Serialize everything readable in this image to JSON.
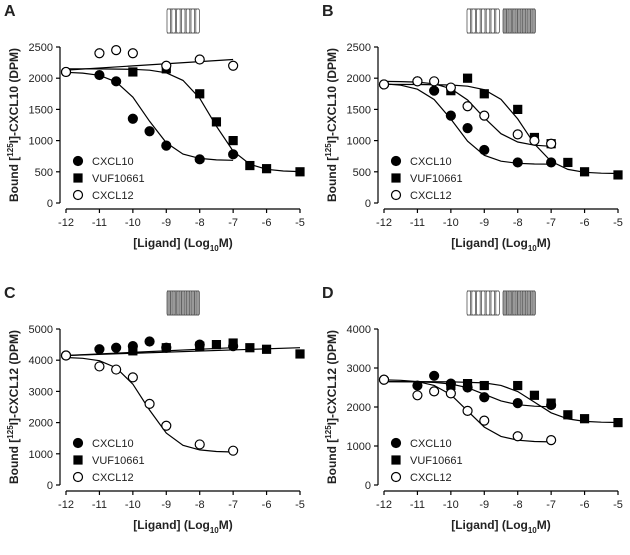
{
  "chart_data": [
    {
      "type": "scatter",
      "label": "A",
      "icon_colors": [
        "#ffffff"
      ],
      "legend": "lower left",
      "ylabel": {
        "pre": "Bound [",
        "sup": "125",
        "post": "I]-CXCL10 (DPM)"
      },
      "xlabel": {
        "pre": "[Ligand] (Log",
        "sub": "10",
        "post": "M)"
      },
      "xlim": [
        -12,
        -5
      ],
      "xticks": [
        -12,
        -11,
        -10,
        -9,
        -8,
        -7,
        -6,
        -5
      ],
      "ylim": [
        0,
        2500
      ],
      "yticks": [
        0,
        500,
        1000,
        1500,
        2000,
        2500
      ],
      "series": [
        {
          "name": "CXCL10",
          "marker": "circle",
          "color": "#000000",
          "fill": "#000000",
          "x": [
            -12,
            -11,
            -10.5,
            -10,
            -9.5,
            -9,
            -8,
            -7
          ],
          "values": [
            2100,
            2050,
            1950,
            1350,
            1150,
            920,
            700,
            780
          ],
          "fit": {
            "x": [
              -12,
              -11.5,
              -11,
              -10.5,
              -10,
              -9.5,
              -9,
              -8.5,
              -8,
              -7.5,
              -7
            ],
            "values": [
              2094,
              2082,
              2046,
              1941,
              1696,
              1309,
              965,
              784,
              715,
              691,
              684
            ]
          }
        },
        {
          "name": "VUF10661",
          "marker": "square",
          "color": "#000000",
          "fill": "#000000",
          "x": [
            -10,
            -9,
            -8,
            -7.5,
            -7,
            -6.5,
            -6,
            -5
          ],
          "values": [
            2100,
            2150,
            1750,
            1300,
            1000,
            600,
            550,
            500
          ],
          "fit": {
            "x": [
              -12,
              -11,
              -10,
              -9.5,
              -9,
              -8.5,
              -8,
              -7.5,
              -7,
              -6.5,
              -6,
              -5.5,
              -5
            ],
            "values": [
              2150,
              2149,
              2143,
              2129,
              2087,
              1965,
              1680,
              1230,
              831,
              621,
              540,
              513,
              504
            ]
          }
        },
        {
          "name": "CXCL12",
          "marker": "circle",
          "color": "#000000",
          "fill": "#ffffff",
          "x": [
            -12,
            -11,
            -10.5,
            -10,
            -9,
            -8,
            -7
          ],
          "values": [
            2100,
            2400,
            2450,
            2400,
            2200,
            2300,
            2200
          ],
          "fit": {
            "x": [
              -12,
              -7
            ],
            "values": [
              2130,
              2300
            ]
          }
        }
      ]
    },
    {
      "type": "scatter",
      "label": "B",
      "icon_colors": [
        "#ffffff",
        "#999999"
      ],
      "legend": "lower left",
      "ylabel": {
        "pre": "Bound [",
        "sup": "125",
        "post": "I]-CXCL10 (DPM)"
      },
      "xlabel": {
        "pre": "[Ligand] (Log",
        "sub": "10",
        "post": "M)"
      },
      "xlim": [
        -12,
        -5
      ],
      "xticks": [
        -12,
        -11,
        -10,
        -9,
        -8,
        -7,
        -6,
        -5
      ],
      "ylim": [
        0,
        2500
      ],
      "yticks": [
        0,
        500,
        1000,
        1500,
        2000,
        2500
      ],
      "series": [
        {
          "name": "CXCL10",
          "marker": "circle",
          "color": "#000000",
          "fill": "#000000",
          "x": [
            -12,
            -11,
            -10.5,
            -10,
            -9.5,
            -9,
            -8,
            -7
          ],
          "values": [
            1900,
            1950,
            1800,
            1400,
            1200,
            850,
            650,
            650
          ],
          "fit": {
            "x": [
              -12,
              -11.5,
              -11,
              -10.5,
              -10,
              -9.5,
              -9,
              -8.5,
              -8,
              -7.5,
              -7
            ],
            "values": [
              1910,
              1888,
              1824,
              1659,
              1345,
              990,
              765,
              670,
              636,
              625,
              622
            ]
          }
        },
        {
          "name": "VUF10661",
          "marker": "square",
          "color": "#000000",
          "fill": "#000000",
          "x": [
            -10,
            -9.5,
            -9,
            -8,
            -7.5,
            -7,
            -6.5,
            -6,
            -5
          ],
          "values": [
            1800,
            2000,
            1750,
            1500,
            1050,
            950,
            650,
            500,
            450
          ],
          "fit": {
            "x": [
              -12,
              -11,
              -10,
              -9.5,
              -9,
              -8.5,
              -8,
              -7.5,
              -7,
              -6.5,
              -6,
              -5.5,
              -5
            ],
            "values": [
              1900,
              1899,
              1891,
              1872,
              1815,
              1662,
              1347,
              947,
              666,
              538,
              492,
              477,
              472
            ]
          }
        },
        {
          "name": "CXCL12",
          "marker": "circle",
          "color": "#000000",
          "fill": "#ffffff",
          "x": [
            -12,
            -11,
            -10.5,
            -10,
            -9.5,
            -9,
            -8,
            -7.5,
            -7
          ],
          "values": [
            1900,
            1950,
            1950,
            1850,
            1550,
            1400,
            1100,
            1000,
            950
          ],
          "fit": {
            "x": [
              -12,
              -11.5,
              -11,
              -10.5,
              -10,
              -9.5,
              -9,
              -8.5,
              -8,
              -7.5,
              -7
            ],
            "values": [
              1949,
              1946,
              1937,
              1910,
              1832,
              1651,
              1365,
              1111,
              977,
              926,
              908
            ]
          }
        }
      ]
    },
    {
      "type": "scatter",
      "label": "C",
      "icon_colors": [
        "#999999"
      ],
      "legend": "lower left",
      "ylabel": {
        "pre": "Bound [",
        "sup": "125",
        "post": "I]-CXCL12 (DPM)"
      },
      "xlabel": {
        "pre": "[Ligand] (Log",
        "sub": "10",
        "post": "M)"
      },
      "xlim": [
        -12,
        -5
      ],
      "xticks": [
        -12,
        -11,
        -10,
        -9,
        -8,
        -7,
        -6,
        -5
      ],
      "ylim": [
        0,
        5000
      ],
      "yticks": [
        0,
        1000,
        2000,
        3000,
        4000,
        5000
      ],
      "series": [
        {
          "name": "CXCL10",
          "marker": "circle",
          "color": "#000000",
          "fill": "#000000",
          "x": [
            -12,
            -11,
            -10.5,
            -10,
            -9.5,
            -9,
            -8,
            -7
          ],
          "values": [
            4150,
            4350,
            4400,
            4450,
            4600,
            4400,
            4500,
            4450
          ],
          "fit": {
            "x": [
              -12,
              -7
            ],
            "values": [
              4150,
              4400
            ]
          }
        },
        {
          "name": "VUF10661",
          "marker": "square",
          "color": "#000000",
          "fill": "#000000",
          "x": [
            -10,
            -9,
            -8,
            -7.5,
            -7,
            -6.5,
            -6,
            -5
          ],
          "values": [
            4300,
            4400,
            4450,
            4500,
            4550,
            4400,
            4350,
            4200
          ],
          "fit": {
            "x": [
              -12,
              -5
            ],
            "values": [
              4150,
              4400
            ]
          }
        },
        {
          "name": "CXCL12",
          "marker": "circle",
          "color": "#000000",
          "fill": "#ffffff",
          "x": [
            -12,
            -11,
            -10.5,
            -10,
            -9.5,
            -9,
            -8,
            -7
          ],
          "values": [
            4150,
            3800,
            3700,
            3450,
            2600,
            1900,
            1300,
            1100
          ],
          "fit": {
            "x": [
              -12,
              -11.5,
              -11,
              -10.5,
              -10,
              -9.5,
              -9,
              -8.5,
              -8,
              -7.5,
              -7
            ],
            "values": [
              4088,
              4062,
              3983,
              3759,
              3232,
              2400,
              1662,
              1274,
              1125,
              1074,
              1058
            ]
          }
        }
      ]
    },
    {
      "type": "scatter",
      "label": "D",
      "icon_colors": [
        "#ffffff",
        "#999999"
      ],
      "legend": "lower left",
      "ylabel": {
        "pre": "Bound [",
        "sup": "125",
        "post": "I]-CXCL12 (DPM)"
      },
      "xlabel": {
        "pre": "[Ligand] (Log",
        "sub": "10",
        "post": "M)"
      },
      "xlim": [
        -12,
        -5
      ],
      "xticks": [
        -12,
        -11,
        -10,
        -9,
        -8,
        -7,
        -6,
        -5
      ],
      "ylim": [
        0,
        4000
      ],
      "yticks": [
        0,
        1000,
        2000,
        3000,
        4000
      ],
      "series": [
        {
          "name": "CXCL10",
          "marker": "circle",
          "color": "#000000",
          "fill": "#000000",
          "x": [
            -12,
            -11,
            -10.5,
            -10,
            -9.5,
            -9,
            -8,
            -7
          ],
          "values": [
            2700,
            2550,
            2800,
            2600,
            2500,
            2250,
            2100,
            2050
          ],
          "fit": {
            "x": [
              -12,
              -11,
              -10.5,
              -10,
              -9.5,
              -9,
              -8.5,
              -8,
              -7.5,
              -7
            ],
            "values": [
              2649,
              2644,
              2630,
              2591,
              2494,
              2325,
              2156,
              2059,
              2020,
              2006
            ]
          }
        },
        {
          "name": "VUF10661",
          "marker": "square",
          "color": "#000000",
          "fill": "#000000",
          "x": [
            -10,
            -9.5,
            -9,
            -8,
            -7.5,
            -7,
            -6.5,
            -6,
            -5
          ],
          "values": [
            2550,
            2600,
            2550,
            2550,
            2300,
            2100,
            1800,
            1700,
            1600
          ],
          "fit": {
            "x": [
              -12,
              -11,
              -10,
              -9,
              -8.5,
              -8,
              -7.5,
              -7,
              -6.5,
              -6,
              -5.5,
              -5
            ],
            "values": [
              2650,
              2650,
              2647,
              2618,
              2555,
              2398,
              2125,
              1852,
              1695,
              1632,
              1610,
              1603
            ]
          }
        },
        {
          "name": "CXCL12",
          "marker": "circle",
          "color": "#000000",
          "fill": "#ffffff",
          "x": [
            -12,
            -11,
            -10.5,
            -10,
            -9.5,
            -9,
            -8,
            -7
          ],
          "values": [
            2700,
            2300,
            2400,
            2350,
            1900,
            1650,
            1250,
            1150
          ],
          "fit": {
            "x": [
              -12,
              -11.5,
              -11,
              -10.5,
              -10,
              -9.5,
              -9,
              -8.5,
              -8,
              -7.5,
              -7
            ],
            "values": [
              2695,
              2684,
              2651,
              2555,
              2316,
              1900,
              1485,
              1245,
              1149,
              1116,
              1105
            ]
          }
        }
      ]
    }
  ]
}
